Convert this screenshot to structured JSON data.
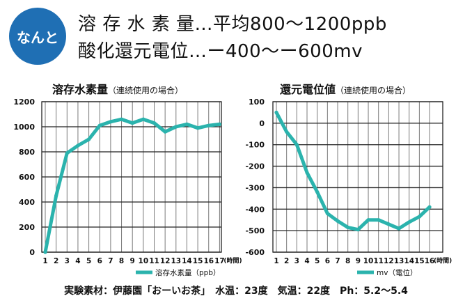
{
  "badge": "なんと",
  "headline": {
    "line1": "溶 存 水 素 量…平均800～1200ppb",
    "line2": "酸化還元電位…ー400～ー600mv"
  },
  "footer": "実験素材：伊藤園「おーいお茶」　水温：23度　気温：22度　Ph：5.2～5.4",
  "colors": {
    "accent": "#2bb3ad",
    "badge": "#1f6fb4"
  },
  "chart_data": [
    {
      "type": "line",
      "title": "溶存水素量",
      "subtitle": "（連続使用の場合）",
      "x": [
        1,
        2,
        3,
        4,
        5,
        6,
        7,
        8,
        9,
        10,
        11,
        12,
        13,
        14,
        15,
        16,
        17
      ],
      "x_unit": "(時間)",
      "series": [
        {
          "name": "溶存水素量（ppb）",
          "values": [
            0,
            450,
            790,
            850,
            900,
            1010,
            1040,
            1060,
            1030,
            1060,
            1030,
            960,
            1000,
            1020,
            990,
            1010,
            1020
          ]
        }
      ],
      "yticks": [
        0,
        200,
        400,
        600,
        800,
        1000,
        1200
      ],
      "ylim": [
        0,
        1200
      ],
      "grid": true,
      "legend": "bottom-right"
    },
    {
      "type": "line",
      "title": "還元電位値",
      "subtitle": "（連続使用の場合）",
      "x": [
        1,
        2,
        3,
        4,
        5,
        6,
        7,
        8,
        9,
        10,
        11,
        12,
        13,
        14,
        15,
        16
      ],
      "x_unit": "(時間)",
      "series": [
        {
          "name": "mv（電位）",
          "values": [
            50,
            -40,
            -100,
            -230,
            -320,
            -420,
            -455,
            -485,
            -495,
            -450,
            -450,
            -470,
            -490,
            -460,
            -435,
            -390
          ]
        }
      ],
      "yticks": [
        100,
        0,
        -100,
        -200,
        -300,
        -400,
        -500,
        -600
      ],
      "ylim": [
        -600,
        100
      ],
      "grid": true,
      "legend": "bottom-right"
    }
  ]
}
